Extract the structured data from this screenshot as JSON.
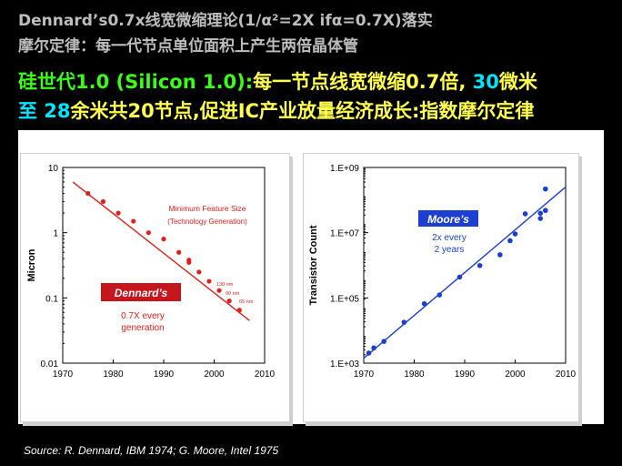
{
  "header": {
    "line1": "Dennard’s0.7x线宽微缩理论(1/α²=2X ifα=0.7X)落实",
    "line2": "摩尔定律：每一代节点单位面积上产生两倍晶体管",
    "line3_a": "硅世代1.0 (Silicon 1.0):",
    "line3_b": "每一节点线宽微缩0.7倍,",
    "line3_c": " 30",
    "line3_d": "微米",
    "line4_a": "至 28",
    "line4_b": "余米共20节点,促进IC产业放量经济成长:指数摩尔定律"
  },
  "colors": {
    "dennard_line": "#e0201c",
    "moore_line": "#1c3fd1",
    "header_grey": "#bdbdbd",
    "green": "#39ff14",
    "yellow": "#ffff4f",
    "cyan": "#00e5ff"
  },
  "chart_data": [
    {
      "type": "scatter",
      "ylabel": "Micron",
      "yscale": "log",
      "xlim": [
        1970,
        2010
      ],
      "ylim": [
        0.01,
        10
      ],
      "xticks": [
        "1970",
        "1980",
        "1990",
        "2000",
        "2010"
      ],
      "yticks": [
        "10",
        "1",
        "0.1",
        "0.01"
      ],
      "annotation_title": "Minimum Feature Size",
      "annotation_subtitle": "(Technology Generation)",
      "node_labels": [
        "130 nm",
        "90 nm",
        "65 nm"
      ],
      "badge": "Dennard’s",
      "note_line1": "0.7X every",
      "note_line2": "generation",
      "trend": [
        [
          1972,
          6.0
        ],
        [
          2007,
          0.045
        ]
      ],
      "points": [
        [
          1975,
          4.0
        ],
        [
          1978,
          3.0
        ],
        [
          1981,
          2.0
        ],
        [
          1984,
          1.5
        ],
        [
          1987,
          1.0
        ],
        [
          1990,
          0.8
        ],
        [
          1993,
          0.5
        ],
        [
          1995,
          0.35
        ],
        [
          1995,
          0.38
        ],
        [
          1997,
          0.25
        ],
        [
          1999,
          0.18
        ],
        [
          2001,
          0.13
        ],
        [
          2003,
          0.09
        ],
        [
          2005,
          0.065
        ]
      ]
    },
    {
      "type": "scatter",
      "ylabel": "Transistor Count",
      "yscale": "log",
      "xlim": [
        1970,
        2010
      ],
      "ylim": [
        1000,
        10000000000
      ],
      "xticks": [
        "1970",
        "1980",
        "1990",
        "2000",
        "2010"
      ],
      "yticks": [
        "1.E+09",
        "1.E+07",
        "1.E+05",
        "1.E+03"
      ],
      "badge": "Moore’s",
      "note_line1": "2x every",
      "note_line2": "2 years",
      "trend": [
        [
          1970,
          1500
        ],
        [
          2010,
          2000000000
        ]
      ],
      "points": [
        [
          1971,
          2300
        ],
        [
          1972,
          3500
        ],
        [
          1974,
          6000
        ],
        [
          1978,
          29000
        ],
        [
          1982,
          134000
        ],
        [
          1985,
          275000
        ],
        [
          1989,
          1200000
        ],
        [
          1993,
          3100000
        ],
        [
          1997,
          7500000
        ],
        [
          1999,
          24000000
        ],
        [
          2000,
          42000000
        ],
        [
          2002,
          220000000
        ],
        [
          2005,
          150000000
        ],
        [
          2005,
          230000000
        ],
        [
          2006,
          290000000
        ],
        [
          2006,
          1700000000
        ]
      ]
    }
  ],
  "footer": {
    "source": "Source: R. Dennard, IBM 1974; G. Moore, Intel 1975"
  }
}
